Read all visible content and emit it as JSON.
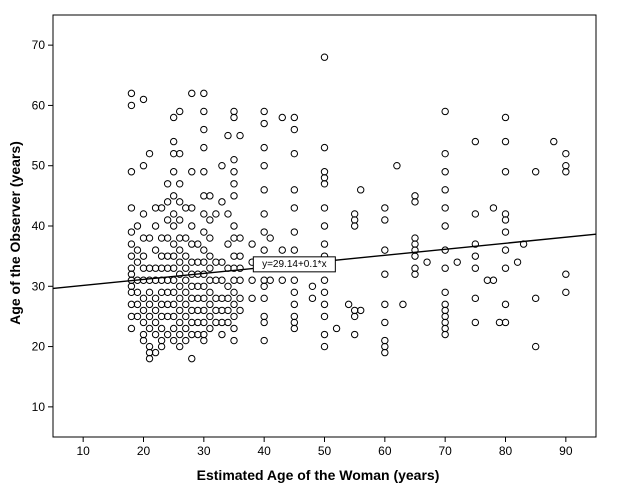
{
  "chart_data": {
    "type": "scatter",
    "title": "",
    "xlabel": "Estimated Age of the Woman (years)",
    "ylabel": "Age of the Observer (years)",
    "xlim": [
      5,
      95
    ],
    "ylim": [
      5,
      75
    ],
    "xticks": [
      10,
      20,
      30,
      40,
      50,
      60,
      70,
      80,
      90
    ],
    "yticks": [
      10,
      20,
      30,
      40,
      50,
      60,
      70
    ],
    "fit_line": {
      "intercept": 29.14,
      "slope": 0.1,
      "label": "y=29.14+0.1*x",
      "label_x": 45
    },
    "points": [
      [
        18,
        62
      ],
      [
        18,
        60
      ],
      [
        18,
        49
      ],
      [
        18,
        43
      ],
      [
        18,
        39
      ],
      [
        18,
        37
      ],
      [
        18,
        35
      ],
      [
        18,
        33
      ],
      [
        18,
        32
      ],
      [
        18,
        31
      ],
      [
        18,
        30
      ],
      [
        18,
        29
      ],
      [
        18,
        27
      ],
      [
        18,
        25
      ],
      [
        18,
        23
      ],
      [
        19,
        40
      ],
      [
        19,
        36
      ],
      [
        19,
        34
      ],
      [
        19,
        31
      ],
      [
        19,
        29
      ],
      [
        19,
        27
      ],
      [
        19,
        25
      ],
      [
        20,
        61
      ],
      [
        20,
        50
      ],
      [
        20,
        42
      ],
      [
        20,
        38
      ],
      [
        20,
        35
      ],
      [
        20,
        33
      ],
      [
        20,
        31
      ],
      [
        20,
        28
      ],
      [
        20,
        26
      ],
      [
        20,
        24
      ],
      [
        20,
        22
      ],
      [
        20,
        21
      ],
      [
        21,
        52
      ],
      [
        21,
        38
      ],
      [
        21,
        33
      ],
      [
        21,
        31
      ],
      [
        21,
        29
      ],
      [
        21,
        27
      ],
      [
        21,
        25
      ],
      [
        21,
        23
      ],
      [
        21,
        20
      ],
      [
        21,
        19
      ],
      [
        21,
        18
      ],
      [
        22,
        43
      ],
      [
        22,
        40
      ],
      [
        22,
        36
      ],
      [
        22,
        33
      ],
      [
        22,
        31
      ],
      [
        22,
        28
      ],
      [
        22,
        26
      ],
      [
        22,
        24
      ],
      [
        22,
        22
      ],
      [
        22,
        19
      ],
      [
        23,
        43
      ],
      [
        23,
        38
      ],
      [
        23,
        35
      ],
      [
        23,
        33
      ],
      [
        23,
        31
      ],
      [
        23,
        29
      ],
      [
        23,
        27
      ],
      [
        23,
        25
      ],
      [
        23,
        23
      ],
      [
        23,
        21
      ],
      [
        23,
        20
      ],
      [
        24,
        47
      ],
      [
        24,
        44
      ],
      [
        24,
        41
      ],
      [
        24,
        38
      ],
      [
        24,
        35
      ],
      [
        24,
        33
      ],
      [
        24,
        31
      ],
      [
        24,
        29
      ],
      [
        24,
        27
      ],
      [
        24,
        25
      ],
      [
        24,
        22
      ],
      [
        25,
        58
      ],
      [
        25,
        54
      ],
      [
        25,
        52
      ],
      [
        25,
        49
      ],
      [
        25,
        45
      ],
      [
        25,
        42
      ],
      [
        25,
        40
      ],
      [
        25,
        37
      ],
      [
        25,
        35
      ],
      [
        25,
        33
      ],
      [
        25,
        31
      ],
      [
        25,
        29
      ],
      [
        25,
        27
      ],
      [
        25,
        25
      ],
      [
        25,
        23
      ],
      [
        25,
        21
      ],
      [
        26,
        59
      ],
      [
        26,
        52
      ],
      [
        26,
        47
      ],
      [
        26,
        44
      ],
      [
        26,
        41
      ],
      [
        26,
        38
      ],
      [
        26,
        36
      ],
      [
        26,
        34
      ],
      [
        26,
        32
      ],
      [
        26,
        30
      ],
      [
        26,
        28
      ],
      [
        26,
        26
      ],
      [
        26,
        24
      ],
      [
        26,
        22
      ],
      [
        26,
        20
      ],
      [
        27,
        43
      ],
      [
        27,
        38
      ],
      [
        27,
        35
      ],
      [
        27,
        33
      ],
      [
        27,
        31
      ],
      [
        27,
        29
      ],
      [
        27,
        27
      ],
      [
        27,
        25
      ],
      [
        27,
        23
      ],
      [
        27,
        21
      ],
      [
        28,
        62
      ],
      [
        28,
        49
      ],
      [
        28,
        43
      ],
      [
        28,
        40
      ],
      [
        28,
        37
      ],
      [
        28,
        34
      ],
      [
        28,
        32
      ],
      [
        28,
        30
      ],
      [
        28,
        28
      ],
      [
        28,
        26
      ],
      [
        28,
        24
      ],
      [
        28,
        22
      ],
      [
        28,
        18
      ],
      [
        29,
        37
      ],
      [
        29,
        34
      ],
      [
        29,
        32
      ],
      [
        29,
        30
      ],
      [
        29,
        28
      ],
      [
        29,
        26
      ],
      [
        29,
        24
      ],
      [
        29,
        22
      ],
      [
        30,
        62
      ],
      [
        30,
        59
      ],
      [
        30,
        56
      ],
      [
        30,
        53
      ],
      [
        30,
        49
      ],
      [
        30,
        45
      ],
      [
        30,
        42
      ],
      [
        30,
        39
      ],
      [
        30,
        36
      ],
      [
        30,
        34
      ],
      [
        30,
        32
      ],
      [
        30,
        30
      ],
      [
        30,
        28
      ],
      [
        30,
        26
      ],
      [
        30,
        24
      ],
      [
        30,
        22
      ],
      [
        30,
        21
      ],
      [
        31,
        45
      ],
      [
        31,
        41
      ],
      [
        31,
        38
      ],
      [
        31,
        35
      ],
      [
        31,
        33
      ],
      [
        31,
        31
      ],
      [
        31,
        29
      ],
      [
        31,
        27
      ],
      [
        31,
        25
      ],
      [
        31,
        23
      ],
      [
        32,
        42
      ],
      [
        32,
        34
      ],
      [
        32,
        31
      ],
      [
        32,
        28
      ],
      [
        32,
        26
      ],
      [
        32,
        24
      ],
      [
        33,
        50
      ],
      [
        33,
        44
      ],
      [
        33,
        34
      ],
      [
        33,
        31
      ],
      [
        33,
        28
      ],
      [
        33,
        26
      ],
      [
        33,
        24
      ],
      [
        33,
        22
      ],
      [
        34,
        55
      ],
      [
        34,
        42
      ],
      [
        34,
        37
      ],
      [
        34,
        33
      ],
      [
        34,
        30
      ],
      [
        34,
        28
      ],
      [
        34,
        26
      ],
      [
        34,
        24
      ],
      [
        35,
        59
      ],
      [
        35,
        58
      ],
      [
        35,
        51
      ],
      [
        35,
        49
      ],
      [
        35,
        47
      ],
      [
        35,
        45
      ],
      [
        35,
        40
      ],
      [
        35,
        38
      ],
      [
        35,
        35
      ],
      [
        35,
        33
      ],
      [
        35,
        31
      ],
      [
        35,
        29
      ],
      [
        35,
        27
      ],
      [
        35,
        25
      ],
      [
        35,
        23
      ],
      [
        35,
        21
      ],
      [
        36,
        55
      ],
      [
        36,
        38
      ],
      [
        36,
        35
      ],
      [
        36,
        33
      ],
      [
        36,
        31
      ],
      [
        36,
        28
      ],
      [
        36,
        26
      ],
      [
        38,
        37
      ],
      [
        38,
        34
      ],
      [
        38,
        31
      ],
      [
        38,
        28
      ],
      [
        40,
        59
      ],
      [
        40,
        57
      ],
      [
        40,
        53
      ],
      [
        40,
        50
      ],
      [
        40,
        46
      ],
      [
        40,
        42
      ],
      [
        40,
        39
      ],
      [
        40,
        36
      ],
      [
        40,
        34
      ],
      [
        40,
        33
      ],
      [
        40,
        31
      ],
      [
        40,
        30
      ],
      [
        40,
        28
      ],
      [
        40,
        25
      ],
      [
        40,
        24
      ],
      [
        40,
        21
      ],
      [
        41,
        38
      ],
      [
        41,
        34
      ],
      [
        41,
        31
      ],
      [
        43,
        58
      ],
      [
        43,
        36
      ],
      [
        43,
        31
      ],
      [
        45,
        58
      ],
      [
        45,
        56
      ],
      [
        45,
        52
      ],
      [
        45,
        46
      ],
      [
        45,
        43
      ],
      [
        45,
        39
      ],
      [
        45,
        36
      ],
      [
        45,
        33
      ],
      [
        45,
        31
      ],
      [
        45,
        29
      ],
      [
        45,
        27
      ],
      [
        45,
        25
      ],
      [
        45,
        24
      ],
      [
        45,
        23
      ],
      [
        48,
        30
      ],
      [
        48,
        28
      ],
      [
        50,
        68
      ],
      [
        50,
        53
      ],
      [
        50,
        49
      ],
      [
        50,
        48
      ],
      [
        50,
        47
      ],
      [
        50,
        43
      ],
      [
        50,
        40
      ],
      [
        50,
        37
      ],
      [
        50,
        35
      ],
      [
        50,
        33
      ],
      [
        50,
        31
      ],
      [
        50,
        29
      ],
      [
        50,
        27
      ],
      [
        50,
        25
      ],
      [
        50,
        22
      ],
      [
        50,
        20
      ],
      [
        52,
        23
      ],
      [
        54,
        27
      ],
      [
        55,
        42
      ],
      [
        55,
        41
      ],
      [
        55,
        40
      ],
      [
        55,
        26
      ],
      [
        55,
        25
      ],
      [
        55,
        22
      ],
      [
        56,
        46
      ],
      [
        56,
        26
      ],
      [
        60,
        43
      ],
      [
        60,
        41
      ],
      [
        60,
        36
      ],
      [
        60,
        32
      ],
      [
        60,
        27
      ],
      [
        60,
        24
      ],
      [
        60,
        21
      ],
      [
        60,
        20
      ],
      [
        60,
        19
      ],
      [
        62,
        50
      ],
      [
        63,
        27
      ],
      [
        65,
        45
      ],
      [
        65,
        44
      ],
      [
        65,
        38
      ],
      [
        65,
        37
      ],
      [
        65,
        36
      ],
      [
        65,
        35
      ],
      [
        65,
        33
      ],
      [
        65,
        32
      ],
      [
        67,
        34
      ],
      [
        70,
        59
      ],
      [
        70,
        52
      ],
      [
        70,
        49
      ],
      [
        70,
        46
      ],
      [
        70,
        43
      ],
      [
        70,
        40
      ],
      [
        70,
        36
      ],
      [
        70,
        33
      ],
      [
        70,
        29
      ],
      [
        70,
        27
      ],
      [
        70,
        26
      ],
      [
        70,
        25
      ],
      [
        70,
        24
      ],
      [
        70,
        23
      ],
      [
        70,
        22
      ],
      [
        72,
        34
      ],
      [
        75,
        54
      ],
      [
        75,
        42
      ],
      [
        75,
        37
      ],
      [
        75,
        35
      ],
      [
        75,
        33
      ],
      [
        75,
        28
      ],
      [
        75,
        24
      ],
      [
        77,
        31
      ],
      [
        78,
        31
      ],
      [
        78,
        43
      ],
      [
        79,
        24
      ],
      [
        80,
        58
      ],
      [
        80,
        54
      ],
      [
        80,
        49
      ],
      [
        80,
        42
      ],
      [
        80,
        41
      ],
      [
        80,
        39
      ],
      [
        80,
        36
      ],
      [
        80,
        33
      ],
      [
        80,
        27
      ],
      [
        80,
        24
      ],
      [
        82,
        34
      ],
      [
        83,
        37
      ],
      [
        85,
        49
      ],
      [
        85,
        28
      ],
      [
        85,
        20
      ],
      [
        88,
        54
      ],
      [
        90,
        52
      ],
      [
        90,
        50
      ],
      [
        90,
        49
      ],
      [
        90,
        32
      ],
      [
        90,
        29
      ]
    ]
  }
}
